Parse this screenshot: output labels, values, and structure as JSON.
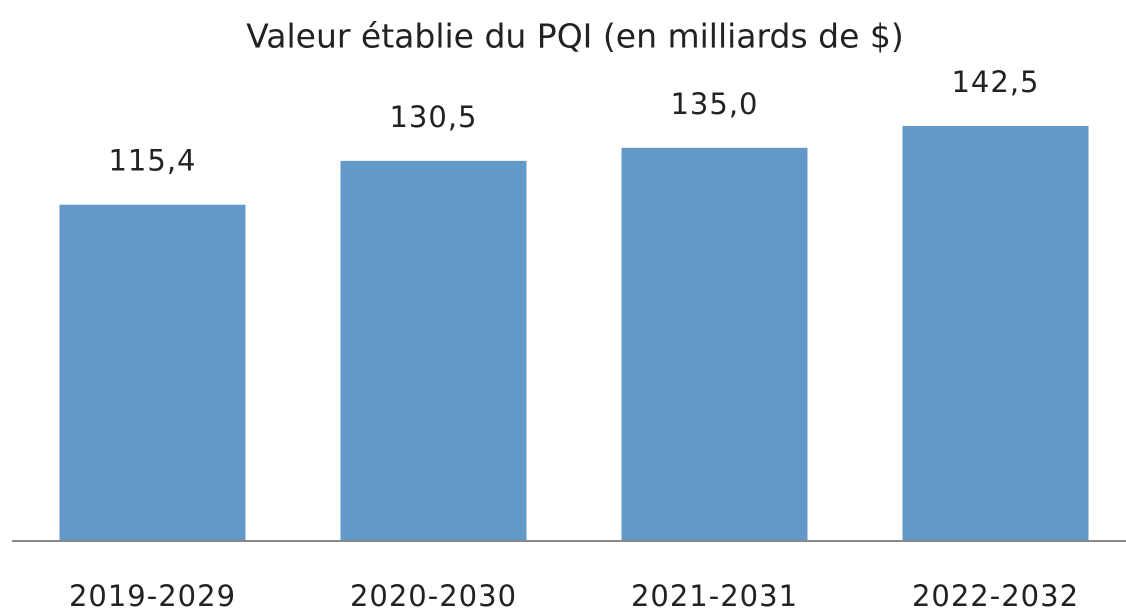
{
  "chart_data": {
    "type": "bar",
    "title": "Valeur établie du PQI (en milliards de $)",
    "categories": [
      "2019-2029",
      "2020-2030",
      "2021-2031",
      "2022-2032"
    ],
    "values": [
      115.4,
      130.5,
      135.0,
      142.5
    ],
    "value_labels": [
      "115,4",
      "130,5",
      "135,0",
      "142,5"
    ],
    "color": "#6399c8"
  }
}
